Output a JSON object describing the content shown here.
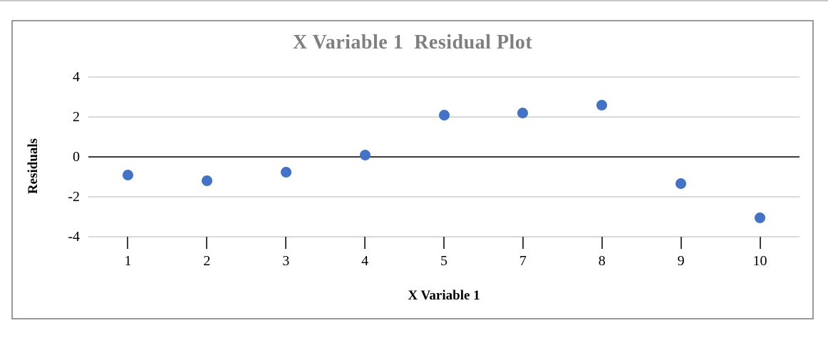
{
  "chart_data": {
    "type": "scatter",
    "title": "X Variable 1  Residual Plot",
    "xlabel": "X Variable 1",
    "ylabel": "Residuals",
    "categories": [
      1,
      2,
      3,
      4,
      5,
      7,
      8,
      9,
      10
    ],
    "values": [
      -0.9,
      -1.2,
      -0.75,
      0.1,
      2.1,
      2.2,
      2.6,
      -1.35,
      -3.05
    ],
    "yticks": [
      4,
      2,
      0,
      -2,
      -4
    ],
    "ylim": [
      -4,
      4
    ],
    "grid": true,
    "legend": false,
    "marker": "circle",
    "colors": {
      "marker": "#4472C4",
      "gridline": "#d9d9d9",
      "zero_line": "#3d3d3d",
      "tick": "#3d3d3d",
      "frame_border": "#9a9a9a",
      "title": "#7f7f7f",
      "text": "#000000",
      "top_rule": "#c9c9c9"
    }
  }
}
